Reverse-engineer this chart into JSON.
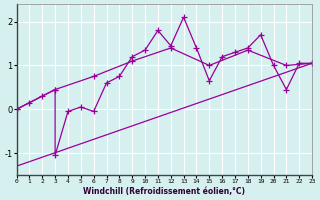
{
  "xlabel": "Windchill (Refroidissement éolien,°C)",
  "background_color": "#d6f0f0",
  "line_color": "#990099",
  "x_ticks": [
    0,
    1,
    2,
    3,
    4,
    5,
    6,
    7,
    8,
    9,
    10,
    11,
    12,
    13,
    14,
    15,
    16,
    17,
    18,
    19,
    20,
    21,
    22,
    23
  ],
  "y_ticks": [
    -1,
    0,
    1,
    2
  ],
  "xlim": [
    0,
    23
  ],
  "ylim": [
    -1.5,
    2.4
  ],
  "series1_x": [
    0,
    1,
    2,
    3,
    3,
    4,
    5,
    6,
    7,
    8,
    9,
    10,
    11,
    12,
    13,
    14,
    15,
    16,
    17,
    18,
    19,
    20,
    21,
    22,
    23
  ],
  "series1_y": [
    0.0,
    0.15,
    0.3,
    0.45,
    -1.05,
    -0.05,
    0.05,
    -0.05,
    0.6,
    0.75,
    1.2,
    1.35,
    1.8,
    1.45,
    2.1,
    1.4,
    0.65,
    1.2,
    1.3,
    1.4,
    1.7,
    1.0,
    0.45,
    1.05,
    1.05
  ],
  "series2_x": [
    0,
    3,
    6,
    9,
    12,
    15,
    18,
    21,
    23
  ],
  "series2_y": [
    0.0,
    0.45,
    0.75,
    1.1,
    1.4,
    1.0,
    1.35,
    1.0,
    1.05
  ],
  "series3_x": [
    0,
    23
  ],
  "series3_y": [
    -1.3,
    1.05
  ]
}
